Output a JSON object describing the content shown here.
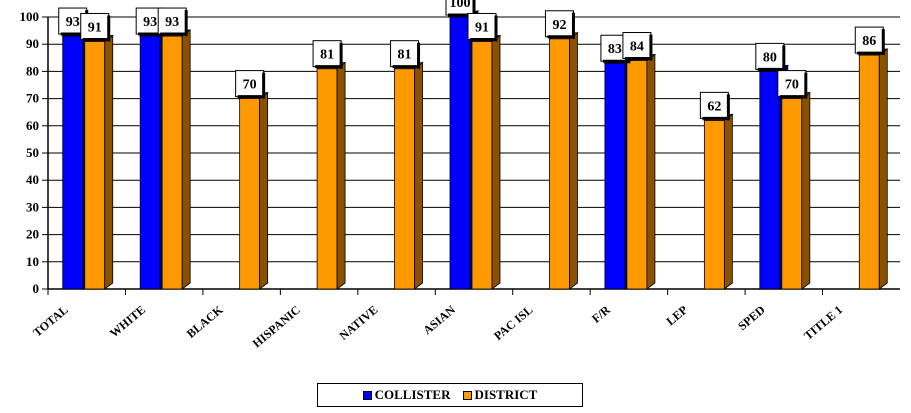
{
  "chart_data": {
    "type": "bar",
    "categories": [
      "TOTAL",
      "WHITE",
      "BLACK",
      "HISPANIC",
      "NATIVE",
      "ASIAN",
      "PAC ISL",
      "F/R",
      "LEP",
      "SPED",
      "TITLE 1"
    ],
    "series": [
      {
        "name": "COLLISTER",
        "color": "#0000FF",
        "values": [
          93,
          93,
          null,
          null,
          null,
          100,
          null,
          83,
          null,
          80,
          null
        ]
      },
      {
        "name": "DISTRICT",
        "color": "#FF9900",
        "values": [
          91,
          93,
          70,
          81,
          81,
          91,
          92,
          84,
          62,
          70,
          86
        ]
      }
    ],
    "yticks": [
      "0",
      "10",
      "20",
      "30",
      "40",
      "50",
      "60",
      "70",
      "80",
      "90",
      "100"
    ],
    "ylim": [
      0,
      100
    ],
    "grid": true,
    "legend": "bottom-center"
  },
  "legend": {
    "collister_label": "COLLISTER",
    "district_label": "DISTRICT"
  }
}
